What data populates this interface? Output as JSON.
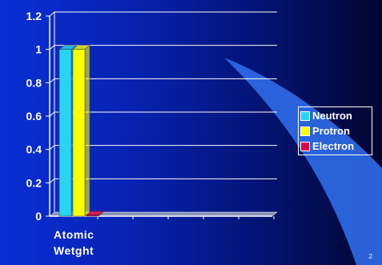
{
  "chart_data": {
    "type": "bar",
    "categories": [
      "Atomic Wetght"
    ],
    "series": [
      {
        "name": "Neutron",
        "values": [
          1
        ],
        "color": "#29d4f2"
      },
      {
        "name": "Protron",
        "values": [
          1
        ],
        "color": "#ffff00"
      },
      {
        "name": "Electron",
        "values": [
          0
        ],
        "color": "#e0004a"
      }
    ],
    "title": "",
    "xlabel": "",
    "ylabel": "",
    "ylim": [
      0,
      1.2
    ],
    "yticks": [
      "0",
      "0.2",
      "0.4",
      "0.6",
      "0.8",
      "1",
      "1.2"
    ],
    "grid": true,
    "legend_position": "right",
    "three_d": true
  },
  "slide": {
    "page_number": "2"
  },
  "colors": {
    "background_start": "#0a2fd6",
    "background_end": "#010630",
    "gridline": "#ffffff"
  }
}
